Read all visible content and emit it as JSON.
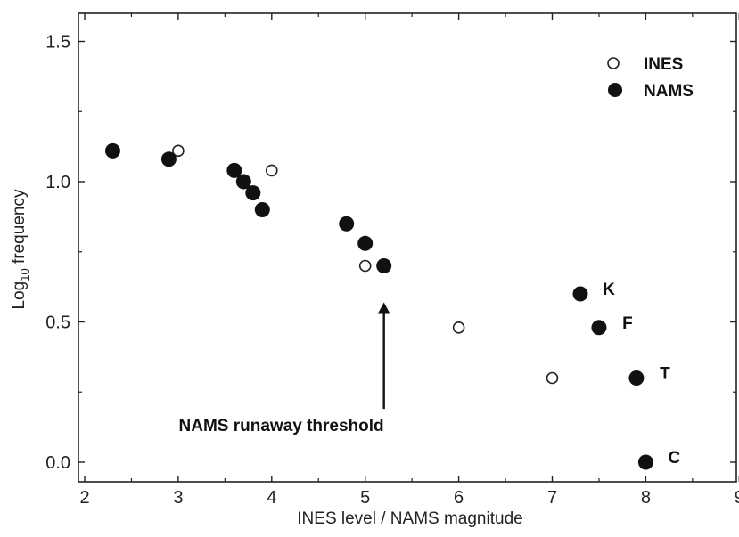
{
  "chart_data": {
    "type": "scatter",
    "title": "",
    "xlabel": "INES level / NAMS magnitude",
    "ylabel_main": "Log",
    "ylabel_sub": "10",
    "ylabel_rest": " frequency",
    "xlim": [
      2,
      9
    ],
    "ylim": [
      -0.05,
      1.6
    ],
    "xticks": [
      2,
      3,
      4,
      5,
      6,
      7,
      8,
      9
    ],
    "xtick_labels": [
      "2",
      "3",
      "4",
      "5",
      "6",
      "7",
      "8",
      "9"
    ],
    "yticks": [
      0.0,
      0.5,
      1.0,
      1.5
    ],
    "ytick_labels": [
      "0.0",
      "0.5",
      "1.0",
      "1.5"
    ],
    "grid": false,
    "legend_position": "top-right",
    "series": [
      {
        "name": "INES",
        "marker": "open-circle",
        "points": [
          {
            "x": 3.0,
            "y": 1.11
          },
          {
            "x": 4.0,
            "y": 1.04
          },
          {
            "x": 5.0,
            "y": 0.7
          },
          {
            "x": 6.0,
            "y": 0.48
          },
          {
            "x": 7.0,
            "y": 0.3
          }
        ]
      },
      {
        "name": "NAMS",
        "marker": "filled-circle",
        "points": [
          {
            "x": 2.3,
            "y": 1.11
          },
          {
            "x": 2.9,
            "y": 1.08
          },
          {
            "x": 3.6,
            "y": 1.04
          },
          {
            "x": 3.7,
            "y": 1.0
          },
          {
            "x": 3.8,
            "y": 0.96
          },
          {
            "x": 3.9,
            "y": 0.9
          },
          {
            "x": 4.8,
            "y": 0.85
          },
          {
            "x": 5.0,
            "y": 0.78
          },
          {
            "x": 5.2,
            "y": 0.7
          },
          {
            "x": 7.3,
            "y": 0.6,
            "label": "K"
          },
          {
            "x": 7.5,
            "y": 0.48,
            "label": "F"
          },
          {
            "x": 7.9,
            "y": 0.3,
            "label": "T"
          },
          {
            "x": 8.0,
            "y": 0.0,
            "label": "C"
          }
        ]
      }
    ],
    "annotations": [
      {
        "text": "NAMS runaway threshold",
        "arrow_x": 5.2,
        "arrow_from_y": 0.19,
        "arrow_to_y": 0.57
      }
    ]
  },
  "colors": {
    "axis": "#222222",
    "open_marker_stroke": "#222222",
    "open_marker_fill": "#ffffff",
    "filled_marker": "#111111"
  }
}
